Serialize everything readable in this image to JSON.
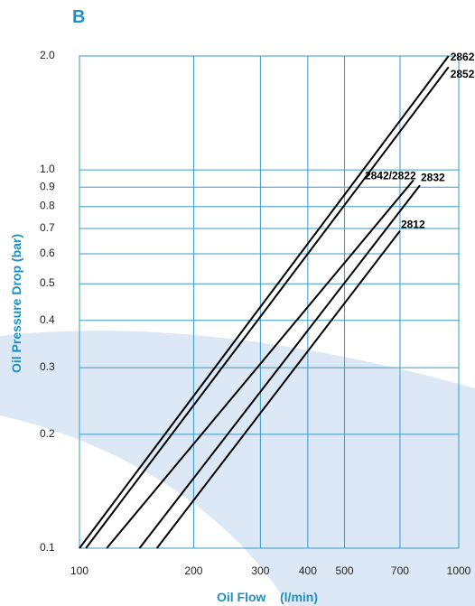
{
  "panel_label": "B",
  "colors": {
    "grid": "#3a9ac9",
    "axis_title": "#1f8fbf",
    "line": "#000000",
    "background_swoosh": "#dce8f5",
    "tick_text": "#222222"
  },
  "chart_data": {
    "type": "line",
    "title": "",
    "xlabel": "Oil Flow    (l/min)",
    "ylabel": "Oil Pressure Drop (bar)",
    "xscale": "log",
    "yscale": "log",
    "xlim": [
      100,
      1000
    ],
    "ylim": [
      0.1,
      2.0
    ],
    "grid": true,
    "x_ticks": [
      100,
      200,
      300,
      400,
      500,
      700,
      1000
    ],
    "x_tick_labels": [
      "100",
      "200",
      "300",
      "400",
      "500",
      "700",
      "1000"
    ],
    "y_ticks": [
      0.1,
      0.2,
      0.3,
      0.4,
      0.5,
      0.6,
      0.7,
      0.8,
      0.9,
      1.0,
      2.0
    ],
    "y_tick_labels": [
      "0.1",
      "0.2",
      "0.3",
      "0.4",
      "0.5",
      "0.6",
      "0.7",
      "0.8",
      "0.9",
      "1.0",
      "2.0"
    ],
    "series": [
      {
        "name": "2862",
        "x": [
          100,
          940
        ],
        "y": [
          0.1,
          2.0
        ]
      },
      {
        "name": "2852",
        "x": [
          104,
          940
        ],
        "y": [
          0.1,
          1.87
        ]
      },
      {
        "name": "2842/2822",
        "x": [
          118,
          760
        ],
        "y": [
          0.1,
          0.94
        ]
      },
      {
        "name": "2832",
        "x": [
          144,
          790
        ],
        "y": [
          0.1,
          0.91
        ]
      },
      {
        "name": "2812",
        "x": [
          160,
          700
        ],
        "y": [
          0.1,
          0.69
        ]
      }
    ]
  }
}
